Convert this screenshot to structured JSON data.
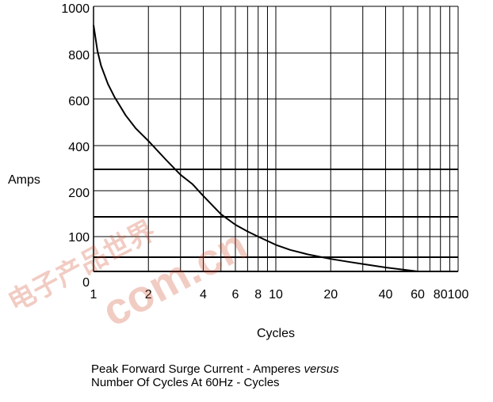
{
  "chart_data": {
    "type": "line",
    "title": "",
    "xlabel": "Cycles",
    "ylabel": "Amps",
    "x_scale": "log",
    "xlim": [
      1,
      100
    ],
    "x_ticks": [
      1,
      2,
      4,
      6,
      8,
      10,
      20,
      40,
      60,
      80,
      100
    ],
    "x_tick_labels": [
      "1",
      "2",
      "4",
      "6",
      "8",
      "10",
      "20",
      "40",
      "60",
      "80",
      "100"
    ],
    "x_gridlines": [
      1,
      2,
      3,
      4,
      5,
      6,
      7,
      8,
      9,
      10,
      20,
      30,
      40,
      50,
      60,
      70,
      80,
      90,
      100
    ],
    "y_tick_labels": [
      "0",
      "100",
      "200",
      "400",
      "600",
      "800",
      "1000"
    ],
    "grid": true,
    "series": [
      {
        "x": [
          1,
          1.05,
          1.1,
          1.2,
          1.3,
          1.5,
          1.7,
          2,
          2.5,
          3,
          3.5,
          4,
          5,
          6,
          7,
          8,
          10,
          12,
          15,
          20,
          25,
          30,
          40,
          50,
          60,
          70,
          80,
          100
        ],
        "y": [
          920,
          810,
          745,
          665,
          610,
          530,
          475,
          420,
          340,
          275,
          230,
          190,
          155,
          130,
          113,
          100,
          82,
          71,
          61,
          52,
          47,
          43,
          37,
          33,
          30,
          29,
          29,
          29
        ]
      }
    ]
  },
  "caption": {
    "line1_prefix": "Peak Forward Surge Current - Amperes ",
    "line1_italic": "versus",
    "line2": "Number Of Cycles At 60Hz - Cycles"
  },
  "watermark": {
    "text_latin": "com.cn",
    "text_cjk": "电子产品世界"
  }
}
